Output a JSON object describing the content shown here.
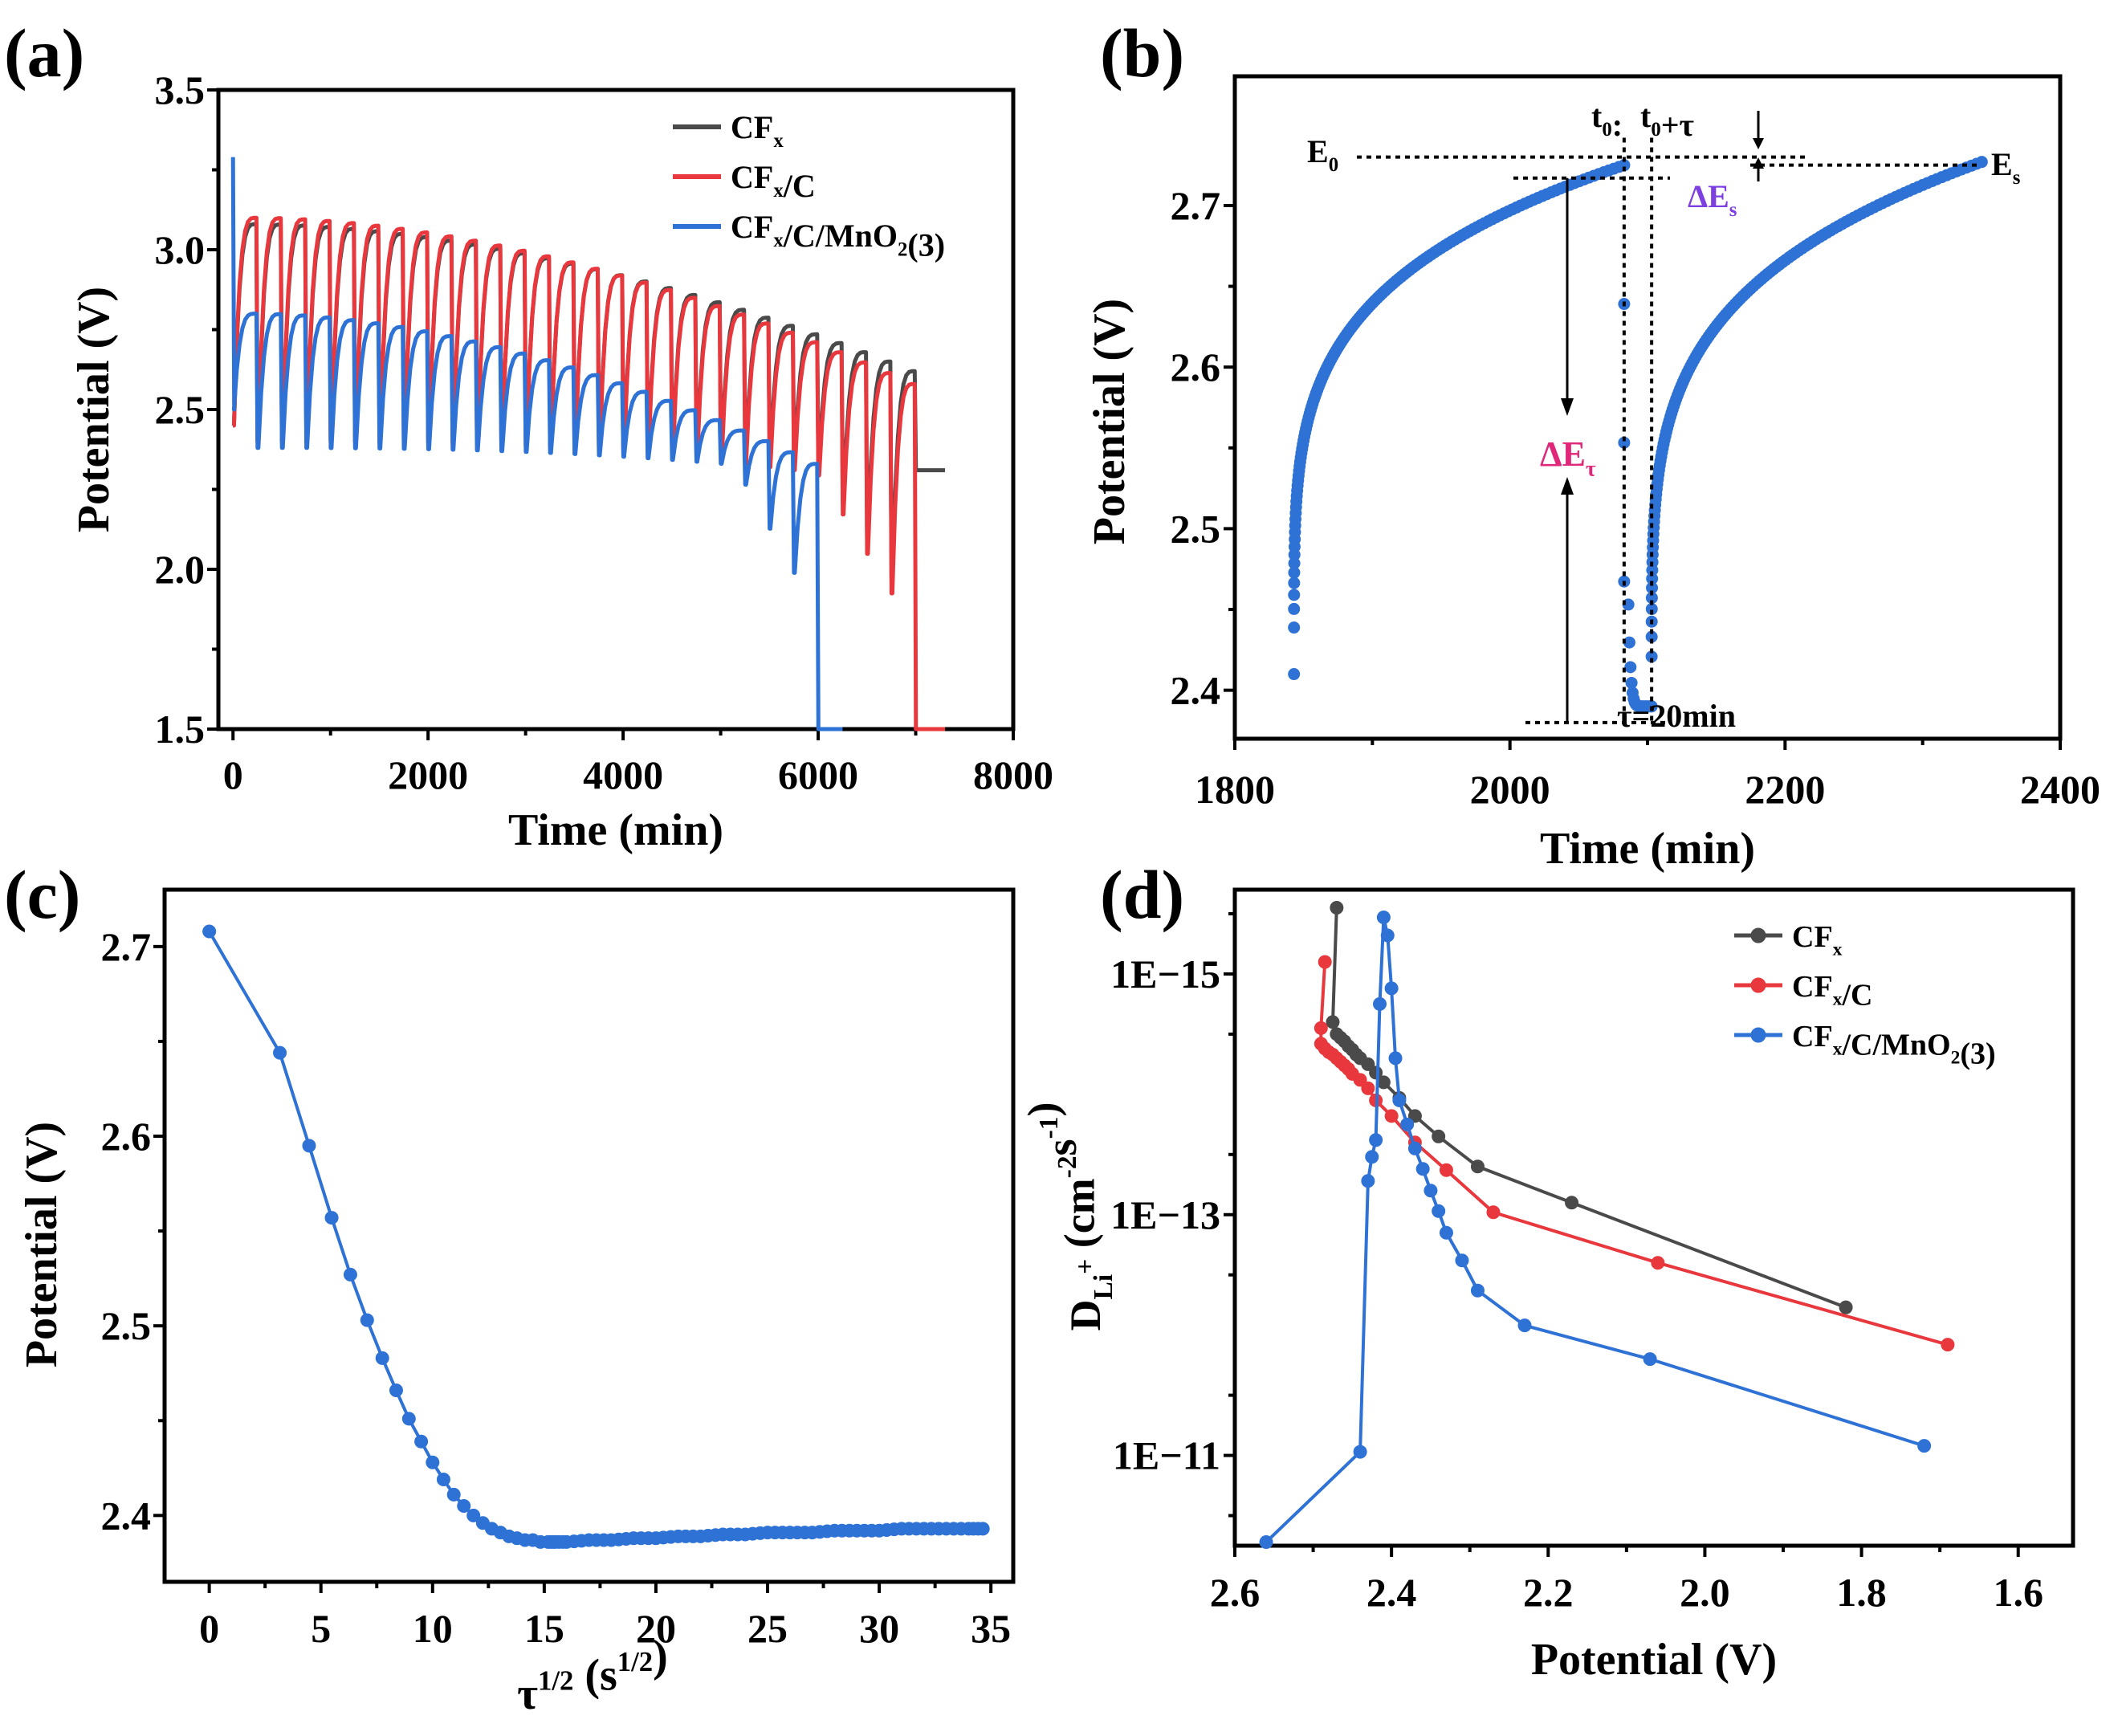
{
  "colors": {
    "black": "#4a4a4a",
    "red": "#e8383d",
    "blue": "#2f72d6"
  },
  "chart_data": [
    {
      "panel": "(a)",
      "type": "line",
      "xlabel": "Time (min)",
      "ylabel": "Potential (V)",
      "xlim": [
        -150,
        8000
      ],
      "ylim": [
        1.5,
        3.5
      ],
      "xticks": [
        0,
        2000,
        4000,
        6000,
        8000
      ],
      "yticks": [
        1.5,
        2.0,
        2.5,
        3.0,
        3.5
      ],
      "xtick_labels": [
        "0",
        "2000",
        "4000",
        "6000",
        "8000"
      ],
      "ytick_labels": [
        "1.5",
        "2.0",
        "2.5",
        "3.0",
        "3.5"
      ],
      "legend_position": "top-right",
      "pulse_period_min": 250,
      "series": [
        {
          "name": "CFx",
          "legend": {
            "main": "CF",
            "sub": "x",
            "tail": ""
          },
          "color": "#4a4a4a",
          "first_peak": 3.08,
          "peak_last": 2.62,
          "low_start": 2.4,
          "low_end": 2.3,
          "n_pulses": 28,
          "final_min": 7300,
          "final_value": 2.31
        },
        {
          "name": "CFx/C",
          "legend": {
            "main": "CF",
            "sub": "x",
            "tail": "/C"
          },
          "color": "#e8383d",
          "first_peak": 3.1,
          "peak_last": 2.58,
          "low_start": 2.4,
          "low_end": 2.25,
          "n_pulses": 28,
          "final_min": 7300,
          "final_value": 1.5
        },
        {
          "name": "CFx/C/MnO2(3)",
          "legend": {
            "main": "CF",
            "sub": "x",
            "tail": "/C/MnO",
            "sub2": "2",
            "tail2": "(3)"
          },
          "color": "#2f72d6",
          "first_peak": 2.8,
          "peak_last": 2.33,
          "low_start": 2.38,
          "low_end": 2.3,
          "n_pulses": 24,
          "final_min": 6250,
          "final_value": 1.5,
          "initial_spike": 3.29
        }
      ]
    },
    {
      "panel": "(b)",
      "type": "scatter",
      "xlabel": "Time (min)",
      "ylabel": "Potential (V)",
      "xlim": [
        1800,
        2400
      ],
      "ylim": [
        2.37,
        2.78
      ],
      "xticks": [
        1800,
        2000,
        2200,
        2400
      ],
      "yticks": [
        2.4,
        2.5,
        2.6,
        2.7
      ],
      "xtick_labels": [
        "1800",
        "2000",
        "2200",
        "2400"
      ],
      "ytick_labels": [
        "2.4",
        "2.5",
        "2.6",
        "2.7"
      ],
      "color": "#2f72d6",
      "segments": [
        {
          "x_start": 1843,
          "x_end": 2083,
          "y_start": 2.41,
          "y_end": 2.725,
          "shape": "relaxation"
        },
        {
          "x_start": 2083,
          "x_end": 2103,
          "y_start": 2.725,
          "y_end": 2.39,
          "shape": "pulse"
        },
        {
          "x_start": 2103,
          "x_end": 2343,
          "y_start": 2.39,
          "y_end": 2.727,
          "shape": "relaxation"
        }
      ],
      "annotations": {
        "E0": "E",
        "E0_sub": "0",
        "Es": "E",
        "Es_sub": "s",
        "t0": "t",
        "t0_sub": "0",
        "t0_colon": ":",
        "t0tau": "t",
        "t0tau_sub": "0",
        "t0tau_tail": "+τ",
        "dEs": "ΔE",
        "dEs_sub": "s",
        "dEtau": "ΔE",
        "dEtau_sub": "τ",
        "tau": "τ=20min"
      },
      "annotation_colors": {
        "dEs": "#7d3fe0",
        "dEtau": "#e0277a"
      }
    },
    {
      "panel": "(c)",
      "type": "line",
      "xlabel": "τ1/2 (s1/2)",
      "xlabel_parts": {
        "a": "τ",
        "a_sup": "1/2",
        "b": " (s",
        "b_sup": "1/2",
        "c": ")"
      },
      "ylabel": "Potential (V)",
      "xlim": [
        -2,
        36
      ],
      "ylim": [
        2.365,
        2.73
      ],
      "xticks": [
        0,
        5,
        10,
        15,
        20,
        25,
        30,
        35
      ],
      "yticks": [
        2.4,
        2.5,
        2.6,
        2.7
      ],
      "xtick_labels": [
        "0",
        "5",
        "10",
        "15",
        "20",
        "25",
        "30",
        "35"
      ],
      "ytick_labels": [
        "2.4",
        "2.5",
        "2.6",
        "2.7"
      ],
      "color": "#2f72d6",
      "points": [
        [
          0,
          2.708
        ],
        [
          3.16,
          2.644
        ],
        [
          4.47,
          2.595
        ],
        [
          5.48,
          2.557
        ],
        [
          6.32,
          2.527
        ],
        [
          7.07,
          2.503
        ],
        [
          7.75,
          2.483
        ],
        [
          8.37,
          2.466
        ],
        [
          8.94,
          2.451
        ],
        [
          9.49,
          2.439
        ],
        [
          10.0,
          2.428
        ],
        [
          10.49,
          2.419
        ],
        [
          10.95,
          2.411
        ],
        [
          11.4,
          2.405
        ],
        [
          11.83,
          2.4
        ],
        [
          12.25,
          2.396
        ],
        [
          12.65,
          2.393
        ],
        [
          13.04,
          2.391
        ],
        [
          13.42,
          2.389
        ],
        [
          13.78,
          2.388
        ],
        [
          14.14,
          2.387
        ],
        [
          14.49,
          2.387
        ],
        [
          14.83,
          2.386
        ],
        [
          15.17,
          2.386
        ],
        [
          15.49,
          2.386
        ],
        [
          16.0,
          2.386
        ],
        [
          17.0,
          2.387
        ],
        [
          18.0,
          2.387
        ],
        [
          19.0,
          2.388
        ],
        [
          20.0,
          2.388
        ],
        [
          21.0,
          2.389
        ],
        [
          22.0,
          2.389
        ],
        [
          23.0,
          2.39
        ],
        [
          24.0,
          2.39
        ],
        [
          25.0,
          2.391
        ],
        [
          26.0,
          2.391
        ],
        [
          27.0,
          2.391
        ],
        [
          28.0,
          2.392
        ],
        [
          29.0,
          2.392
        ],
        [
          30.0,
          2.392
        ],
        [
          31.0,
          2.393
        ],
        [
          32.0,
          2.393
        ],
        [
          33.0,
          2.393
        ],
        [
          34.0,
          2.393
        ],
        [
          34.64,
          2.393
        ]
      ]
    },
    {
      "panel": "(d)",
      "type": "line",
      "xlabel": "Potential (V)",
      "ylabel": "DLi+ (cm-2s-1)",
      "ylabel_parts": {
        "a": "D",
        "a_sub": "Li",
        "a_sup": "+",
        "b": " (cm",
        "b_sup": "-2",
        "c": "s",
        "c_sup": "-1",
        "d": ")"
      },
      "x_reversed": true,
      "xlim": [
        2.6,
        1.53
      ],
      "y_scale": "log",
      "ylim_exp": [
        -15.7,
        -10.25
      ],
      "xticks": [
        2.6,
        2.4,
        2.2,
        2.0,
        1.8,
        1.6
      ],
      "xtick_labels": [
        "2.6",
        "2.4",
        "2.2",
        "2.0",
        "1.8",
        "1.6"
      ],
      "yticks_exp": [
        -15,
        -13,
        -11
      ],
      "ytick_labels": [
        "1E−15",
        "1E−13",
        "1E−11"
      ],
      "legend_position": "top-right",
      "series": [
        {
          "name": "CFx",
          "legend": {
            "main": "CF",
            "sub": "x",
            "tail": ""
          },
          "color": "#4a4a4a",
          "points_exp": [
            [
              2.47,
              -15.55
            ],
            [
              2.475,
              -14.6
            ],
            [
              2.47,
              -14.5
            ],
            [
              2.465,
              -14.47
            ],
            [
              2.46,
              -14.44
            ],
            [
              2.455,
              -14.4
            ],
            [
              2.45,
              -14.37
            ],
            [
              2.445,
              -14.33
            ],
            [
              2.44,
              -14.3
            ],
            [
              2.43,
              -14.25
            ],
            [
              2.42,
              -14.18
            ],
            [
              2.41,
              -14.1
            ],
            [
              2.39,
              -13.97
            ],
            [
              2.37,
              -13.82
            ],
            [
              2.34,
              -13.65
            ],
            [
              2.29,
              -13.4
            ],
            [
              2.17,
              -13.1
            ],
            [
              1.82,
              -12.23
            ]
          ]
        },
        {
          "name": "CFx/C",
          "legend": {
            "main": "CF",
            "sub": "x",
            "tail": "/C"
          },
          "color": "#e8383d",
          "points_exp": [
            [
              2.485,
              -15.1
            ],
            [
              2.49,
              -14.55
            ],
            [
              2.49,
              -14.42
            ],
            [
              2.485,
              -14.38
            ],
            [
              2.48,
              -14.35
            ],
            [
              2.475,
              -14.33
            ],
            [
              2.47,
              -14.3
            ],
            [
              2.465,
              -14.27
            ],
            [
              2.46,
              -14.24
            ],
            [
              2.455,
              -14.21
            ],
            [
              2.45,
              -14.17
            ],
            [
              2.44,
              -14.12
            ],
            [
              2.43,
              -14.05
            ],
            [
              2.42,
              -13.95
            ],
            [
              2.4,
              -13.82
            ],
            [
              2.37,
              -13.6
            ],
            [
              2.33,
              -13.37
            ],
            [
              2.27,
              -13.02
            ],
            [
              2.06,
              -12.6
            ],
            [
              1.69,
              -11.92
            ]
          ]
        },
        {
          "name": "CFx/C/MnO2(3)",
          "legend": {
            "main": "CF",
            "sub": "x",
            "tail": "/C/MnO",
            "sub2": "2",
            "tail2": "(3)"
          },
          "color": "#2f72d6",
          "points_exp": [
            [
              2.56,
              -10.28
            ],
            [
              2.44,
              -11.03
            ],
            [
              2.43,
              -13.28
            ],
            [
              2.425,
              -13.48
            ],
            [
              2.42,
              -13.62
            ],
            [
              2.415,
              -14.75
            ],
            [
              2.41,
              -15.47
            ],
            [
              2.405,
              -15.32
            ],
            [
              2.4,
              -14.88
            ],
            [
              2.395,
              -14.3
            ],
            [
              2.39,
              -13.95
            ],
            [
              2.38,
              -13.75
            ],
            [
              2.37,
              -13.55
            ],
            [
              2.36,
              -13.38
            ],
            [
              2.35,
              -13.2
            ],
            [
              2.34,
              -13.03
            ],
            [
              2.33,
              -12.85
            ],
            [
              2.31,
              -12.62
            ],
            [
              2.29,
              -12.37
            ],
            [
              2.23,
              -12.08
            ],
            [
              2.07,
              -11.8
            ],
            [
              1.72,
              -11.08
            ]
          ]
        }
      ]
    }
  ]
}
